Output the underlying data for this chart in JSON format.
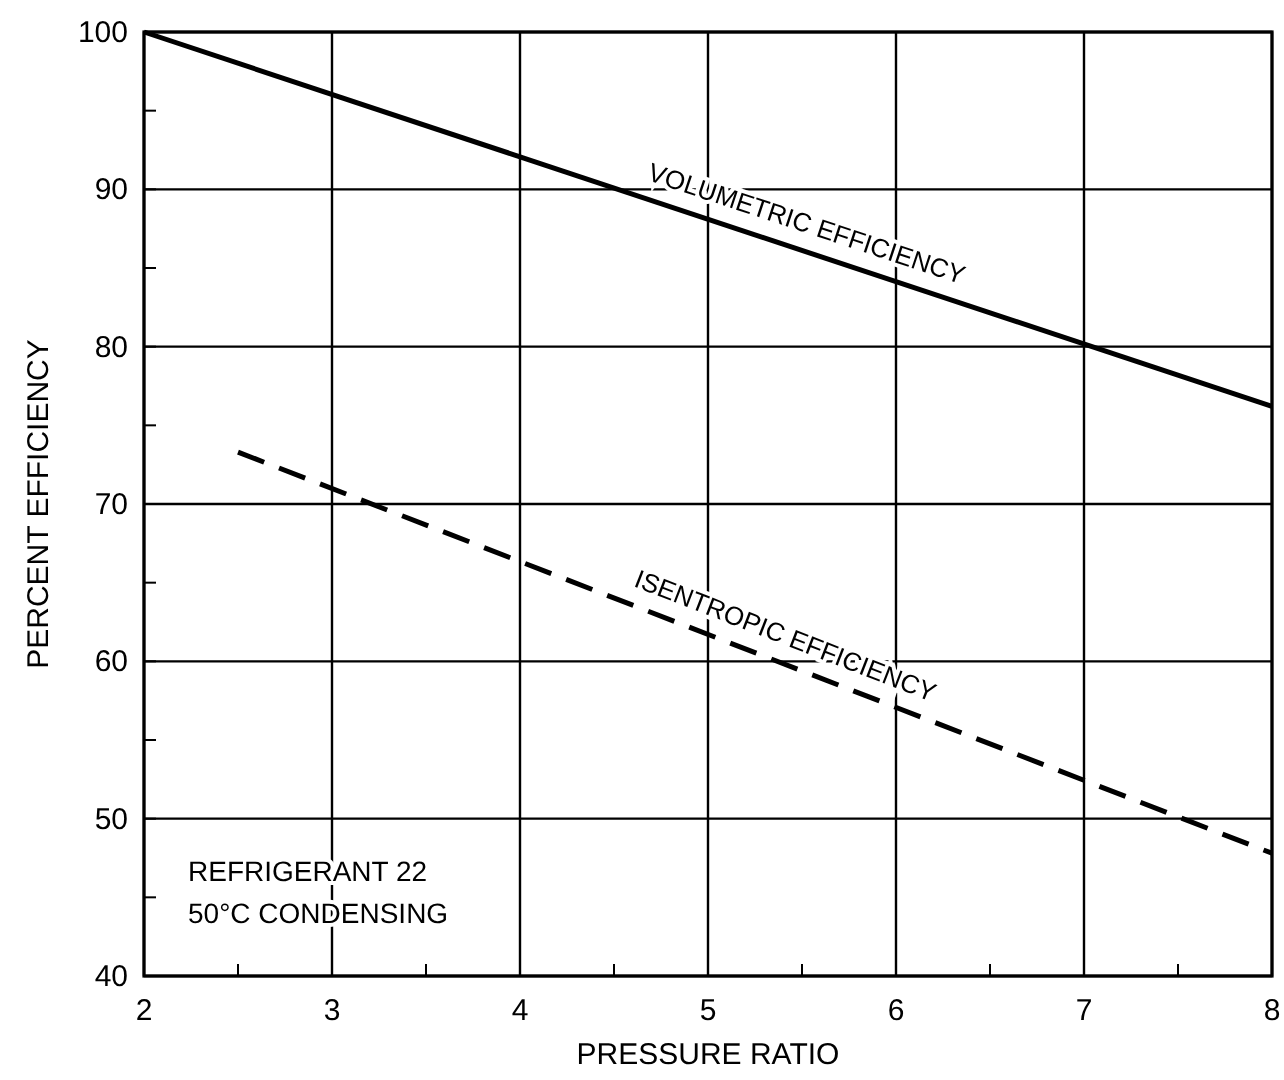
{
  "chart_data": {
    "type": "line",
    "xlabel": "PRESSURE RATIO",
    "ylabel": "PERCENT EFFICIENCY",
    "xlim": [
      2,
      8
    ],
    "ylim": [
      40,
      100
    ],
    "xticks": [
      2,
      {
        "value": 2.5,
        "label": null
      },
      3,
      {
        "value": 3.5,
        "label": null
      },
      4,
      {
        "value": 4.5,
        "label": null
      },
      5,
      {
        "value": 5.5,
        "label": null
      },
      6,
      {
        "value": 6.5,
        "label": null
      },
      7,
      {
        "value": 7.5,
        "label": null
      },
      8
    ],
    "yticks": [
      40,
      {
        "value": 45,
        "label": null
      },
      50,
      {
        "value": 55,
        "label": null
      },
      60,
      {
        "value": 65,
        "label": null
      },
      70,
      {
        "value": 75,
        "label": null
      },
      80,
      {
        "value": 85,
        "label": null
      },
      90,
      {
        "value": 95,
        "label": null
      },
      100
    ],
    "grid": true,
    "series": [
      {
        "name": "VOLUMETRIC EFFICIENCY",
        "color": "#000000",
        "line_style": "solid",
        "x": [
          2,
          8
        ],
        "values": [
          100,
          76.2
        ]
      },
      {
        "name": "ISENTROPIC EFFICIENCY",
        "color": "#000000",
        "line_style": "dashed",
        "x": [
          2.5,
          8
        ],
        "values": [
          73.3,
          47.8
        ]
      }
    ],
    "annotations": [
      "REFRIGERANT 22",
      "50°C CONDENSING"
    ]
  }
}
